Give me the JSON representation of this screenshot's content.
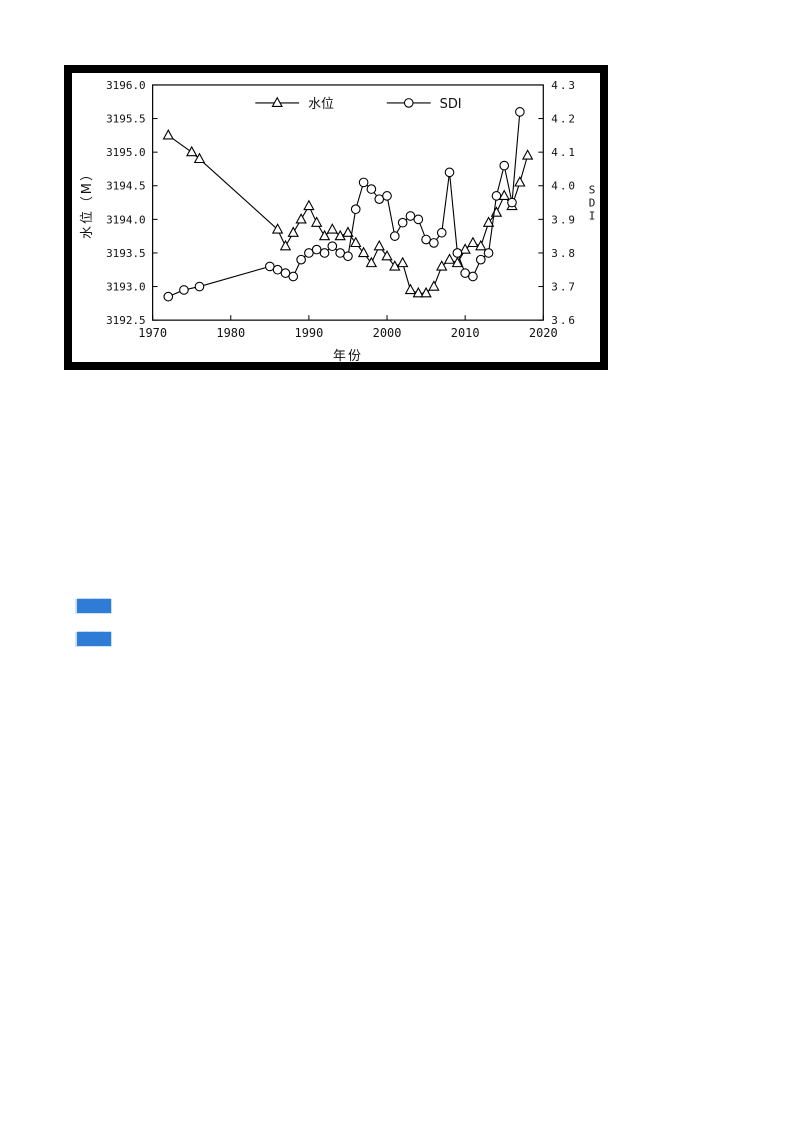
{
  "figure": {
    "frame_color": "#000000",
    "background": "#ffffff"
  },
  "chart_data": {
    "type": "line",
    "title": "",
    "xlabel": "年份",
    "ylabel_left": "水位（M）",
    "ylabel_right": "SDI",
    "x_range": [
      1970,
      2020
    ],
    "x_ticks": [
      1970,
      1980,
      1990,
      2000,
      2010,
      2020
    ],
    "y_left_range": [
      3192.5,
      3196.0
    ],
    "y_left_ticks": [
      "3196.0",
      "3195.5",
      "3195.0",
      "3194.5",
      "3194.0",
      "3193.5",
      "3193.0",
      "3192.5"
    ],
    "y_right_range": [
      3.6,
      4.3
    ],
    "y_right_ticks": [
      "4.3",
      "4.2",
      "4.1",
      "4.0",
      "3.9",
      "3.8",
      "3.7",
      "3.6"
    ],
    "grid": false,
    "legend_position": "top-inside",
    "legend": [
      {
        "label": "水位",
        "marker": "triangle"
      },
      {
        "label": "SDI",
        "marker": "circle"
      }
    ],
    "series": [
      {
        "name": "水位",
        "key": "water-level",
        "axis": "left",
        "marker": "triangle",
        "color": "#000000",
        "x": [
          1972,
          1975,
          1976,
          1986,
          1987,
          1988,
          1989,
          1990,
          1991,
          1992,
          1993,
          1994,
          1995,
          1996,
          1997,
          1998,
          1999,
          2000,
          2001,
          2002,
          2003,
          2004,
          2005,
          2006,
          2007,
          2008,
          2009,
          2010,
          2011,
          2012,
          2013,
          2014,
          2015,
          2016,
          2017,
          2018
        ],
        "y": [
          3195.25,
          3195.0,
          3194.9,
          3193.85,
          3193.6,
          3193.8,
          3194.0,
          3194.2,
          3193.95,
          3193.75,
          3193.85,
          3193.75,
          3193.8,
          3193.65,
          3193.5,
          3193.35,
          3193.6,
          3193.45,
          3193.3,
          3193.35,
          3192.95,
          3192.9,
          3192.9,
          3193.0,
          3193.3,
          3193.4,
          3193.35,
          3193.55,
          3193.65,
          3193.6,
          3193.95,
          3194.1,
          3194.35,
          3194.2,
          3194.55,
          3194.95
        ]
      },
      {
        "name": "SDI",
        "key": "sdi",
        "axis": "right",
        "marker": "circle",
        "color": "#000000",
        "x": [
          1972,
          1974,
          1976,
          1985,
          1986,
          1987,
          1988,
          1989,
          1990,
          1991,
          1992,
          1993,
          1994,
          1995,
          1996,
          1997,
          1998,
          1999,
          2000,
          2001,
          2002,
          2003,
          2004,
          2005,
          2006,
          2007,
          2008,
          2009,
          2010,
          2011,
          2012,
          2013,
          2014,
          2015,
          2016,
          2017
        ],
        "y": [
          3.67,
          3.69,
          3.7,
          3.76,
          3.75,
          3.74,
          3.73,
          3.78,
          3.8,
          3.81,
          3.8,
          3.82,
          3.8,
          3.79,
          3.93,
          4.01,
          3.99,
          3.96,
          3.97,
          3.85,
          3.89,
          3.91,
          3.9,
          3.84,
          3.83,
          3.86,
          4.04,
          3.8,
          3.74,
          3.73,
          3.78,
          3.8,
          3.97,
          4.06,
          3.95,
          4.22
        ]
      }
    ]
  },
  "annotations": {
    "links": [
      {
        "text": "████"
      },
      {
        "text": "████"
      }
    ],
    "link_color": "#2e7cd6",
    "link_highlight": "#cfe3f6"
  }
}
